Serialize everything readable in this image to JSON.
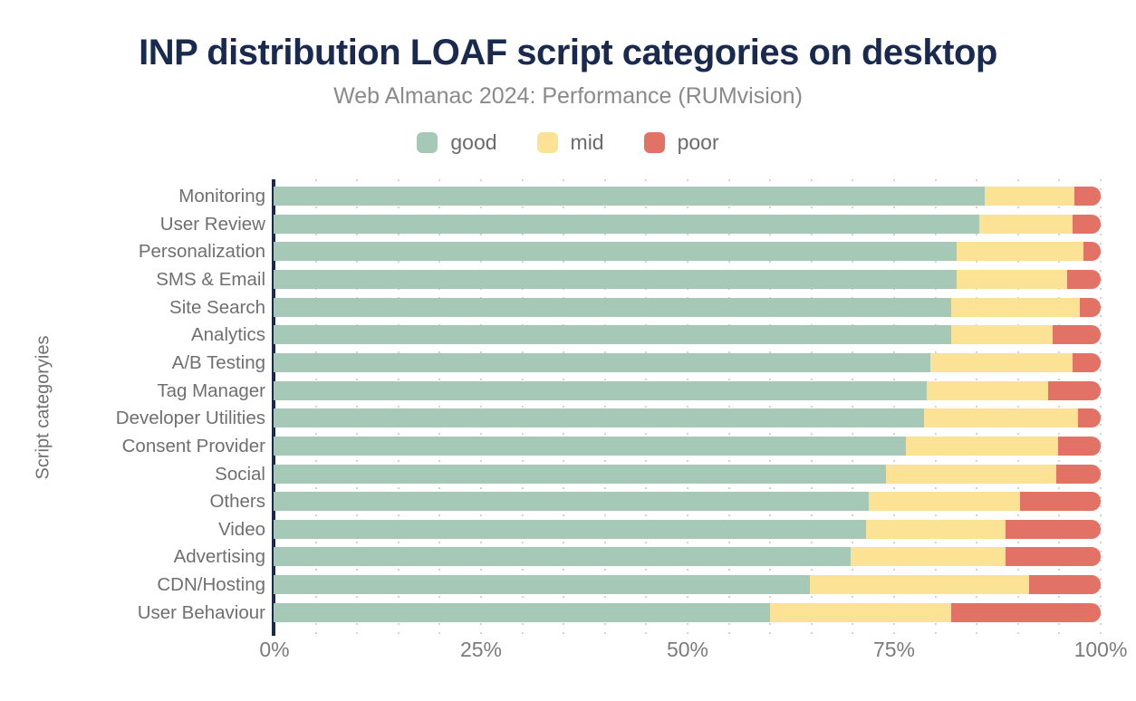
{
  "header": {
    "title": "INP distribution LOAF script categories on desktop",
    "subtitle": "Web Almanac 2024: Performance (RUMvision)"
  },
  "legend": {
    "items": [
      {
        "label": "good",
        "color": "#a6c9b7"
      },
      {
        "label": "mid",
        "color": "#fce294"
      },
      {
        "label": "poor",
        "color": "#e27166"
      }
    ]
  },
  "chart_data": {
    "type": "bar",
    "variant": "horizontal-stacked",
    "title": "INP distribution LOAF script categories on desktop",
    "subtitle": "Web Almanac 2024: Performance (RUMvision)",
    "ylabel": "Script categoryies",
    "xlabel": "",
    "unit": "%",
    "xlim": [
      0,
      100
    ],
    "x_ticks": [
      "0%",
      "25%",
      "50%",
      "75%",
      "100%"
    ],
    "grid": "dotted vertical lines every 5%",
    "legend_position": "top",
    "categories": [
      "Monitoring",
      "User Review",
      "Personalization",
      "SMS & Email",
      "Site Search",
      "Analytics",
      "A/B Testing",
      "Tag Manager",
      "Developer Utilities",
      "Consent Provider",
      "Social",
      "Others",
      "Video",
      "Advertising",
      "CDN/Hosting",
      "User Behaviour"
    ],
    "series": [
      {
        "name": "good",
        "color": "#a6c9b7",
        "values": [
          86.0,
          85.3,
          82.6,
          82.6,
          81.9,
          81.9,
          79.4,
          79.0,
          78.6,
          76.4,
          74.0,
          72.0,
          71.6,
          69.8,
          64.8,
          60.0
        ]
      },
      {
        "name": "mid",
        "color": "#fce294",
        "values": [
          10.8,
          11.3,
          15.3,
          13.4,
          15.6,
          12.3,
          17.2,
          14.6,
          18.7,
          18.4,
          20.6,
          18.2,
          16.9,
          18.7,
          26.5,
          21.9
        ]
      },
      {
        "name": "poor",
        "color": "#e27166",
        "values": [
          3.2,
          3.4,
          2.1,
          4.0,
          2.5,
          5.8,
          3.4,
          6.4,
          2.7,
          5.2,
          5.4,
          9.8,
          11.5,
          11.5,
          8.7,
          18.1
        ]
      }
    ]
  },
  "colors": {
    "title": "#1a2a4f",
    "subtitle": "#8a8a8a",
    "axis_line": "#1a2a4f",
    "category_labels": "#6f6f6f",
    "tick_labels": "#7b7b7b",
    "gridline": "#d2d2d2",
    "background": "#ffffff"
  }
}
